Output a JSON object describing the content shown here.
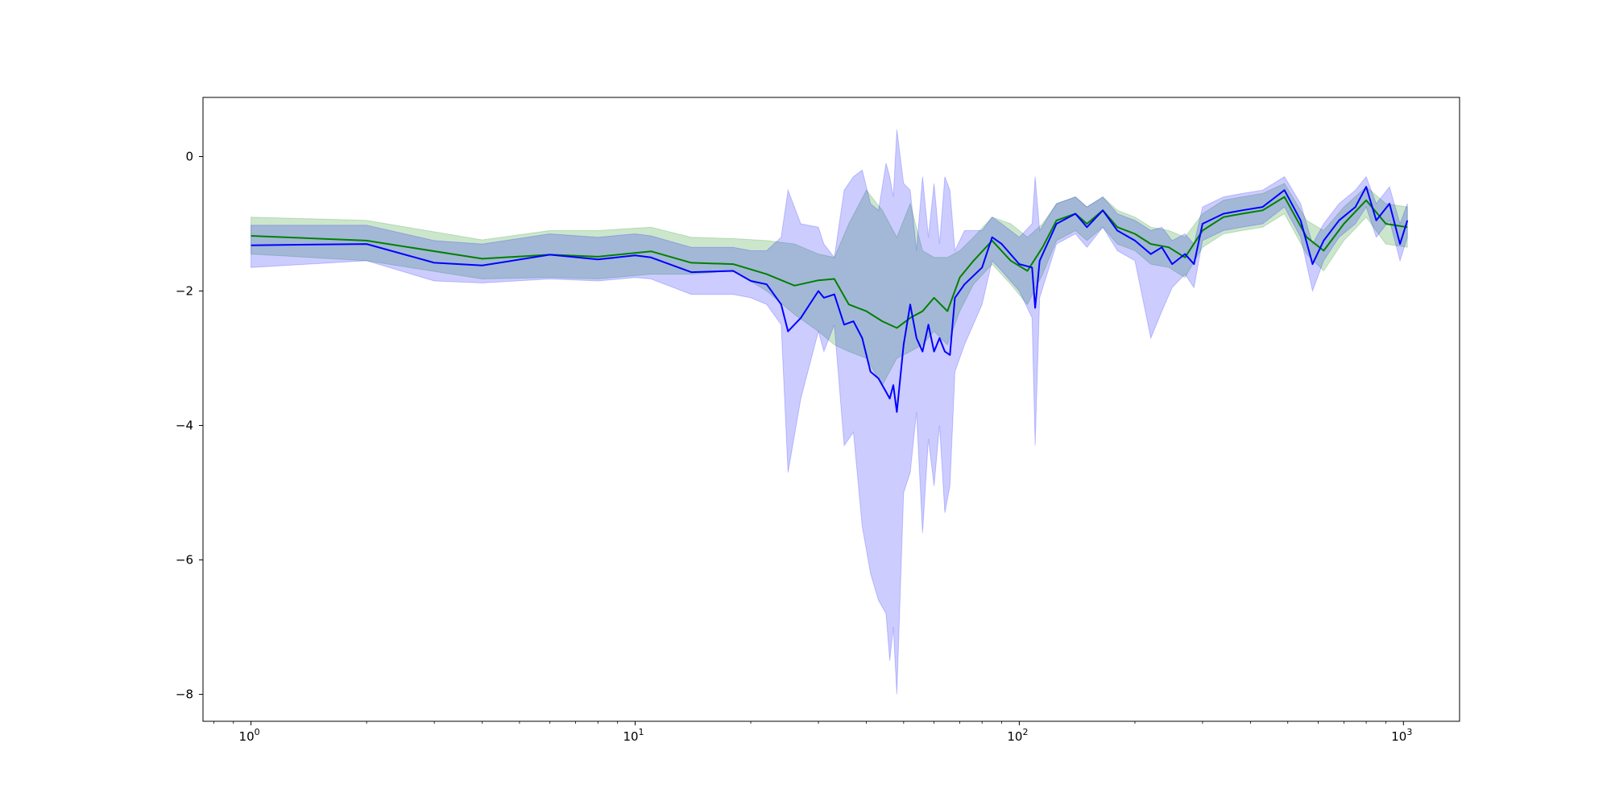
{
  "chart_data": {
    "type": "line",
    "title": "",
    "xlabel": "",
    "ylabel": "",
    "xscale": "log",
    "xlim": [
      0.75,
      1400
    ],
    "ylim": [
      -8.4,
      0.88
    ],
    "grid": false,
    "x_ticks": [
      {
        "value": 1,
        "base": "10",
        "exp": "0"
      },
      {
        "value": 10,
        "base": "10",
        "exp": "1"
      },
      {
        "value": 100,
        "base": "10",
        "exp": "2"
      },
      {
        "value": 1000,
        "base": "10",
        "exp": "3"
      }
    ],
    "y_ticks": [
      {
        "value": 0,
        "label": "0"
      },
      {
        "value": -2,
        "label": "−2"
      },
      {
        "value": -4,
        "label": "−4"
      },
      {
        "value": -6,
        "label": "−6"
      },
      {
        "value": -8,
        "label": "−8"
      }
    ],
    "series": [
      {
        "color": "#008000",
        "band_color": "#008000",
        "band_opacity": 0.2,
        "points": [
          [
            1,
            -1.18,
            -0.9,
            -1.45
          ],
          [
            2,
            -1.25,
            -0.95,
            -1.55
          ],
          [
            4,
            -1.52,
            -1.24,
            -1.82
          ],
          [
            6,
            -1.46,
            -1.1,
            -1.8
          ],
          [
            8,
            -1.49,
            -1.1,
            -1.82
          ],
          [
            11,
            -1.41,
            -1.05,
            -1.75
          ],
          [
            14,
            -1.58,
            -1.2,
            -1.75
          ],
          [
            18,
            -1.6,
            -1.22,
            -1.7
          ],
          [
            22,
            -1.75,
            -1.25,
            -2.0
          ],
          [
            26,
            -1.92,
            -1.3,
            -2.35
          ],
          [
            30,
            -1.84,
            -1.45,
            -2.6
          ],
          [
            33,
            -1.82,
            -1.5,
            -2.8
          ],
          [
            36,
            -2.2,
            -1.0,
            -2.9
          ],
          [
            40,
            -2.3,
            -0.5,
            -3.0
          ],
          [
            44,
            -2.45,
            -0.8,
            -3.4
          ],
          [
            48,
            -2.55,
            -1.2,
            -3.0
          ],
          [
            52,
            -2.4,
            -0.7,
            -2.9
          ],
          [
            56,
            -2.3,
            -1.4,
            -2.8
          ],
          [
            60,
            -2.1,
            -1.5,
            -2.6
          ],
          [
            65,
            -2.3,
            -1.5,
            -2.8
          ],
          [
            70,
            -1.8,
            -1.4,
            -2.3
          ],
          [
            76,
            -1.55,
            -1.2,
            -1.9
          ],
          [
            85,
            -1.25,
            -0.9,
            -1.6
          ],
          [
            95,
            -1.55,
            -1.0,
            -1.9
          ],
          [
            105,
            -1.7,
            -1.2,
            -2.2
          ],
          [
            115,
            -1.35,
            -1.0,
            -1.75
          ],
          [
            125,
            -0.95,
            -0.7,
            -1.25
          ],
          [
            140,
            -0.85,
            -0.6,
            -1.1
          ],
          [
            150,
            -1.0,
            -0.75,
            -1.25
          ],
          [
            165,
            -0.8,
            -0.6,
            -1.05
          ],
          [
            180,
            -1.05,
            -0.8,
            -1.3
          ],
          [
            200,
            -1.15,
            -0.9,
            -1.4
          ],
          [
            220,
            -1.3,
            -1.05,
            -1.6
          ],
          [
            245,
            -1.35,
            -1.1,
            -1.65
          ],
          [
            270,
            -1.5,
            -1.2,
            -1.8
          ],
          [
            300,
            -1.1,
            -0.85,
            -1.35
          ],
          [
            340,
            -0.9,
            -0.65,
            -1.15
          ],
          [
            380,
            -0.85,
            -0.6,
            -1.1
          ],
          [
            430,
            -0.8,
            -0.55,
            -1.05
          ],
          [
            490,
            -0.6,
            -0.4,
            -0.85
          ],
          [
            560,
            -1.2,
            -0.95,
            -1.45
          ],
          [
            620,
            -1.4,
            -1.1,
            -1.7
          ],
          [
            700,
            -1.0,
            -0.75,
            -1.25
          ],
          [
            800,
            -0.65,
            -0.45,
            -0.9
          ],
          [
            900,
            -1.0,
            -0.7,
            -1.3
          ],
          [
            1024,
            -1.05,
            -0.75,
            -1.35
          ]
        ]
      },
      {
        "color": "#0000ff",
        "band_color": "#0000ff",
        "band_opacity": 0.2,
        "points": [
          [
            1,
            -1.32,
            -1.02,
            -1.65
          ],
          [
            2,
            -1.3,
            -1.02,
            -1.55
          ],
          [
            3,
            -1.58,
            -1.25,
            -1.85
          ],
          [
            4,
            -1.62,
            -1.3,
            -1.88
          ],
          [
            6,
            -1.46,
            -1.15,
            -1.82
          ],
          [
            8,
            -1.53,
            -1.2,
            -1.85
          ],
          [
            10,
            -1.47,
            -1.15,
            -1.8
          ],
          [
            11,
            -1.5,
            -1.18,
            -1.82
          ],
          [
            14,
            -1.72,
            -1.35,
            -2.05
          ],
          [
            18,
            -1.7,
            -1.35,
            -2.05
          ],
          [
            20,
            -1.85,
            -1.4,
            -2.1
          ],
          [
            22,
            -1.9,
            -1.4,
            -2.2
          ],
          [
            24,
            -2.2,
            -1.2,
            -2.5
          ],
          [
            25,
            -2.6,
            -0.5,
            -4.7
          ],
          [
            27,
            -2.4,
            -1.0,
            -3.6
          ],
          [
            30,
            -2.0,
            -1.05,
            -2.6
          ],
          [
            31,
            -2.1,
            -1.3,
            -2.9
          ],
          [
            33,
            -2.05,
            -1.5,
            -2.5
          ],
          [
            35,
            -2.5,
            -0.5,
            -4.3
          ],
          [
            37,
            -2.45,
            -0.3,
            -4.1
          ],
          [
            39,
            -2.7,
            -0.2,
            -5.5
          ],
          [
            41,
            -3.2,
            -0.7,
            -6.2
          ],
          [
            43,
            -3.3,
            -0.8,
            -6.6
          ],
          [
            45,
            -3.5,
            -0.1,
            -6.8
          ],
          [
            46,
            -3.6,
            -0.3,
            -7.5
          ],
          [
            47,
            -3.4,
            -0.6,
            -7.0
          ],
          [
            48,
            -3.8,
            0.4,
            -8.0
          ],
          [
            50,
            -2.8,
            -0.4,
            -5.0
          ],
          [
            52,
            -2.2,
            -0.5,
            -4.7
          ],
          [
            54,
            -2.7,
            -1.4,
            -3.8
          ],
          [
            56,
            -2.9,
            -0.3,
            -5.6
          ],
          [
            58,
            -2.5,
            -1.2,
            -4.2
          ],
          [
            60,
            -2.9,
            -0.4,
            -4.9
          ],
          [
            62,
            -2.7,
            -1.3,
            -4.0
          ],
          [
            64,
            -2.9,
            -0.3,
            -5.3
          ],
          [
            66,
            -2.95,
            -0.5,
            -4.9
          ],
          [
            68,
            -2.1,
            -1.4,
            -3.2
          ],
          [
            72,
            -1.9,
            -1.1,
            -2.8
          ],
          [
            80,
            -1.65,
            -1.1,
            -2.2
          ],
          [
            85,
            -1.2,
            -0.9,
            -1.55
          ],
          [
            90,
            -1.3,
            -1.0,
            -1.7
          ],
          [
            100,
            -1.6,
            -1.2,
            -2.0
          ],
          [
            108,
            -1.65,
            -1.0,
            -2.4
          ],
          [
            110,
            -2.25,
            -0.3,
            -4.3
          ],
          [
            113,
            -1.55,
            -1.1,
            -2.1
          ],
          [
            125,
            -1.0,
            -0.7,
            -1.3
          ],
          [
            140,
            -0.85,
            -0.6,
            -1.15
          ],
          [
            150,
            -1.05,
            -0.75,
            -1.35
          ],
          [
            165,
            -0.8,
            -0.6,
            -1.05
          ],
          [
            180,
            -1.1,
            -0.85,
            -1.4
          ],
          [
            200,
            -1.25,
            -0.95,
            -1.55
          ],
          [
            220,
            -1.45,
            -1.1,
            -2.7
          ],
          [
            235,
            -1.35,
            -1.05,
            -2.3
          ],
          [
            250,
            -1.6,
            -1.25,
            -1.95
          ],
          [
            270,
            -1.45,
            -1.15,
            -1.75
          ],
          [
            285,
            -1.6,
            -1.3,
            -1.95
          ],
          [
            300,
            -1.0,
            -0.75,
            -1.25
          ],
          [
            340,
            -0.85,
            -0.6,
            -1.1
          ],
          [
            380,
            -0.8,
            -0.55,
            -1.05
          ],
          [
            430,
            -0.75,
            -0.5,
            -1.0
          ],
          [
            490,
            -0.5,
            -0.3,
            -0.75
          ],
          [
            540,
            -0.95,
            -0.7,
            -1.2
          ],
          [
            580,
            -1.6,
            -1.3,
            -2.0
          ],
          [
            620,
            -1.25,
            -1.0,
            -1.55
          ],
          [
            680,
            -0.95,
            -0.7,
            -1.2
          ],
          [
            750,
            -0.75,
            -0.5,
            -1.0
          ],
          [
            800,
            -0.45,
            -0.3,
            -0.75
          ],
          [
            850,
            -0.95,
            -0.7,
            -1.2
          ],
          [
            920,
            -0.7,
            -0.45,
            -0.95
          ],
          [
            980,
            -1.3,
            -1.0,
            -1.55
          ],
          [
            1024,
            -0.95,
            -0.7,
            -1.2
          ]
        ]
      }
    ]
  }
}
